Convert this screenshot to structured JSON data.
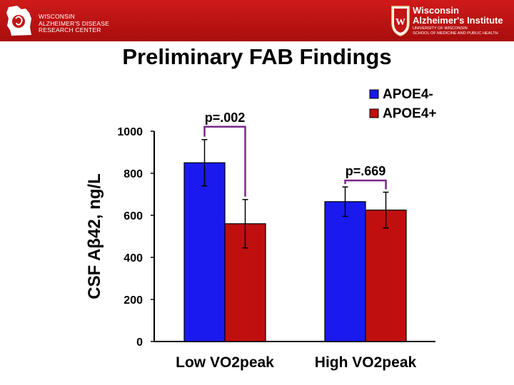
{
  "header": {
    "left_logo_lines": [
      "WISCONSIN",
      "ALZHEIMER'S DISEASE",
      "RESEARCH CENTER"
    ],
    "right_logo_line1": "Wisconsin",
    "right_logo_line2": "Alzheimer's Institute",
    "right_logo_line3": "UNIVERSITY OF WISCONSIN",
    "right_logo_line4": "SCHOOL OF MEDICINE AND PUBLIC HEALTH",
    "bar_color": "#c41414"
  },
  "title": "Preliminary FAB Findings",
  "chart_data": {
    "type": "bar",
    "categories": [
      "Low VO2peak",
      "High VO2peak"
    ],
    "series": [
      {
        "name": "APOE4-",
        "values": [
          850,
          665
        ],
        "errors": [
          110,
          70
        ],
        "color": "#1a1aee"
      },
      {
        "name": "APOE4+",
        "values": [
          560,
          625
        ],
        "errors": [
          115,
          85
        ],
        "color": "#c00f0f"
      }
    ],
    "ylabel": "CSF Aβ42, ng/L",
    "xlabel": "",
    "ylim": [
      0,
      1000
    ],
    "yticks": [
      0,
      200,
      400,
      600,
      800,
      1000
    ],
    "annotations": [
      {
        "text": "p=.002",
        "category": 0
      },
      {
        "text": "p=.669",
        "category": 1
      }
    ],
    "bracket_color": "#7a2a8a",
    "legend_position": "top-right",
    "grid": false
  }
}
